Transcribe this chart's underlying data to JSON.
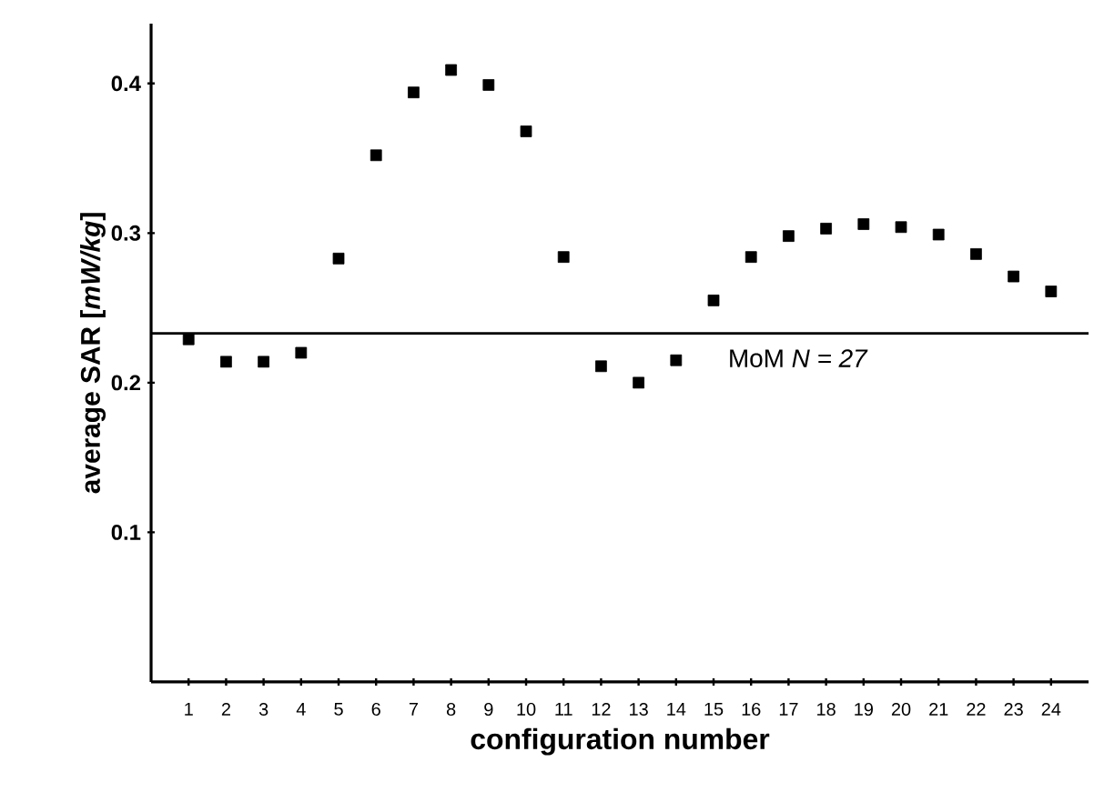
{
  "chart_data": {
    "type": "scatter",
    "xlabel": "configuration number",
    "ylabel": "average SAR  [*mW/kg*]",
    "x": [
      1,
      2,
      3,
      4,
      5,
      6,
      7,
      8,
      9,
      10,
      11,
      12,
      13,
      14,
      15,
      16,
      17,
      18,
      19,
      20,
      21,
      22,
      23,
      24
    ],
    "values": [
      0.229,
      0.214,
      0.214,
      0.22,
      0.283,
      0.352,
      0.394,
      0.409,
      0.399,
      0.368,
      0.284,
      0.211,
      0.2,
      0.215,
      0.255,
      0.284,
      0.298,
      0.303,
      0.306,
      0.304,
      0.299,
      0.286,
      0.271,
      0.261
    ],
    "color": "#000000",
    "marker": "square",
    "xlim": [
      0,
      25
    ],
    "ylim": [
      0,
      0.44
    ],
    "xticks": [
      1,
      2,
      3,
      4,
      5,
      6,
      7,
      8,
      9,
      10,
      11,
      12,
      13,
      14,
      15,
      16,
      17,
      18,
      19,
      20,
      21,
      22,
      23,
      24
    ],
    "yticks": [
      0.1,
      0.2,
      0.3,
      0.4
    ],
    "ref_lines": [
      {
        "axis": "y",
        "value": 0.233,
        "color": "#000000"
      }
    ],
    "annotations": [
      "MoM  *N = 27*"
    ]
  }
}
